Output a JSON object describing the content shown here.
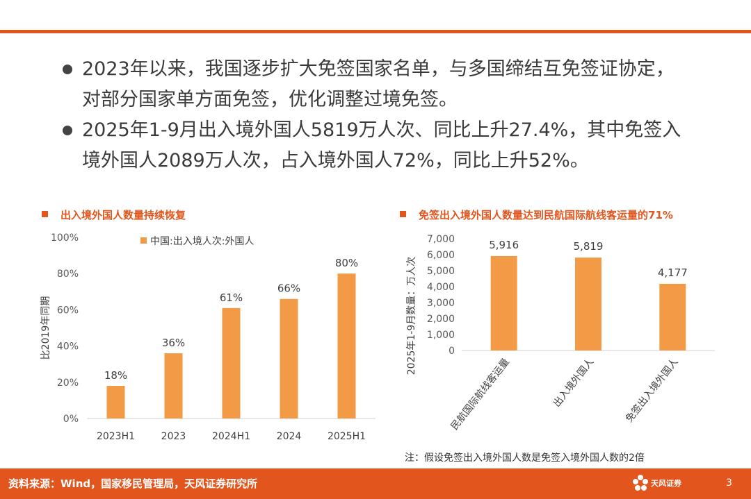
{
  "bullets": [
    {
      "line1": "2023年以来，我国逐步扩大免签国家名单，与多国缔结互免签证协定，",
      "line2": "对部分国家单方面免签，优化调整过境免签。"
    },
    {
      "line1": "2025年1-9月出入境外国人5819万人次、同比上升27.4%，其中免签入",
      "line2": "境外国人2089万人次，占入境外国人72%，同比上升52%。"
    }
  ],
  "left_chart_title": "出入境外国人数量持续恢复",
  "right_chart_title": "免签出入境外国人数量达到民航国际航线客运量的71%",
  "note": "注：假设免签出入境外国人数是免签入境外国人数的2倍",
  "footer": {
    "source": "资料来源：Wind，国家移民管理局，天风证券研究所",
    "logo_text": "天风证券",
    "page": "3"
  },
  "colors": {
    "accent": "#e2561e",
    "bar": "#f39a46",
    "text": "#333333"
  },
  "chart_data": [
    {
      "type": "bar",
      "title": "出入境外国人数量持续恢复",
      "categories": [
        "2023H1",
        "2023",
        "2024H1",
        "2024",
        "2025H1"
      ],
      "series": [
        {
          "name": "中国:出入境人次:外国人",
          "values": [
            18,
            36,
            61,
            66,
            80
          ]
        }
      ],
      "data_labels": [
        "18%",
        "36%",
        "61%",
        "66%",
        "80%"
      ],
      "ylabel": "比2019年同期",
      "ylim": [
        0,
        100
      ],
      "yticks": [
        "0%",
        "20%",
        "40%",
        "60%",
        "80%",
        "100%"
      ],
      "grid": false,
      "legend": "top"
    },
    {
      "type": "bar",
      "title": "免签出入境外国人数量达到民航国际航线客运量的71%",
      "categories": [
        "民航国际航线客运量",
        "出入境外国人",
        "免签出入境外国人"
      ],
      "values": [
        5916,
        5819,
        4177
      ],
      "data_labels": [
        "5,916",
        "5,819",
        "4,177"
      ],
      "ylabel": "2025年1-9月数量：万人次",
      "ylim": [
        0,
        7000
      ],
      "yticks": [
        "0",
        "1,000",
        "2,000",
        "3,000",
        "4,000",
        "5,000",
        "6,000",
        "7,000"
      ],
      "grid": false
    }
  ]
}
